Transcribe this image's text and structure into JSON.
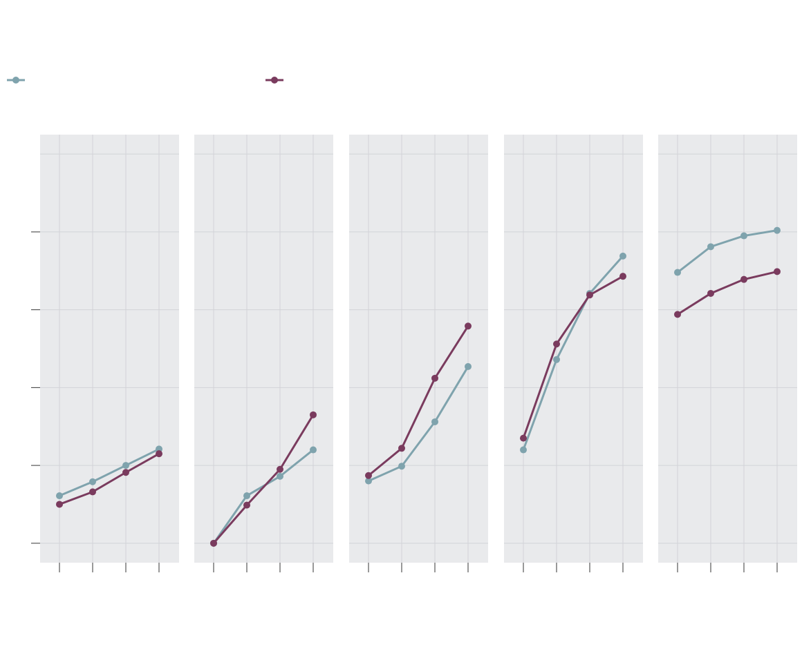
{
  "chart_data": [
    {
      "type": "line",
      "categories": [
        null,
        null,
        null,
        null
      ],
      "ylim": [
        -0.25,
        5.25
      ],
      "yticks": [
        0,
        1,
        2,
        3,
        4,
        5
      ],
      "grid": true,
      "series": [
        {
          "color": "#7fa3ad",
          "values": [
            0.61,
            0.79,
            1.0,
            1.21
          ]
        },
        {
          "color": "#7a3b5e",
          "values": [
            0.5,
            0.66,
            0.91,
            1.15
          ]
        }
      ]
    },
    {
      "type": "line",
      "categories": [
        null,
        null,
        null,
        null
      ],
      "ylim": [
        -0.25,
        5.25
      ],
      "yticks": [
        0,
        1,
        2,
        3,
        4,
        5
      ],
      "grid": true,
      "series": [
        {
          "color": "#7fa3ad",
          "values": [
            0,
            0.61,
            0.86,
            1.2
          ]
        },
        {
          "color": "#7a3b5e",
          "values": [
            0,
            0.49,
            0.95,
            1.65
          ]
        }
      ]
    },
    {
      "type": "line",
      "categories": [
        null,
        null,
        null,
        null
      ],
      "ylim": [
        -0.25,
        5.25
      ],
      "yticks": [
        0,
        1,
        2,
        3,
        4,
        5
      ],
      "grid": true,
      "series": [
        {
          "color": "#7fa3ad",
          "values": [
            0.8,
            0.99,
            1.56,
            2.27
          ]
        },
        {
          "color": "#7a3b5e",
          "values": [
            0.87,
            1.22,
            2.12,
            2.79
          ]
        }
      ]
    },
    {
      "type": "line",
      "categories": [
        null,
        null,
        null,
        null
      ],
      "ylim": [
        -0.25,
        5.25
      ],
      "yticks": [
        0,
        1,
        2,
        3,
        4,
        5
      ],
      "grid": true,
      "series": [
        {
          "color": "#7fa3ad",
          "values": [
            1.2,
            2.36,
            3.21,
            3.69
          ]
        },
        {
          "color": "#7a3b5e",
          "values": [
            1.35,
            2.56,
            3.19,
            3.43
          ]
        }
      ]
    },
    {
      "type": "line",
      "categories": [
        null,
        null,
        null,
        null
      ],
      "ylim": [
        -0.25,
        5.25
      ],
      "yticks": [
        0,
        1,
        2,
        3,
        4,
        5
      ],
      "grid": true,
      "series": [
        {
          "color": "#7fa3ad",
          "values": [
            3.48,
            3.81,
            3.95,
            4.02
          ]
        },
        {
          "color": "#7a3b5e",
          "values": [
            2.94,
            3.21,
            3.39,
            3.49
          ]
        }
      ]
    }
  ]
}
